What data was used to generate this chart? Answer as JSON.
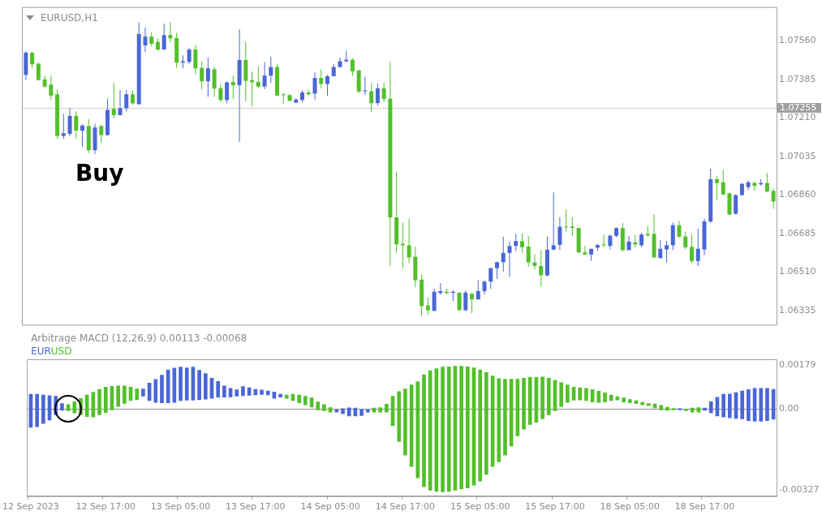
{
  "chart_data": [
    {
      "type": "candlestick",
      "title": "EURUSD,H1",
      "categories": [
        null,
        null,
        null,
        null,
        null,
        null,
        null,
        null,
        null,
        null,
        null,
        null,
        null,
        null,
        null,
        null,
        null,
        null,
        null,
        null,
        null,
        null,
        null,
        null,
        null,
        null,
        null,
        null,
        null,
        null,
        null,
        null,
        null,
        null,
        null,
        null,
        null,
        null,
        null,
        null,
        null,
        null,
        null,
        null,
        null,
        null,
        null,
        null,
        null,
        null,
        null,
        null,
        null,
        null,
        null,
        null,
        null,
        null,
        null,
        null,
        null,
        null,
        null,
        null,
        null,
        null,
        null,
        null,
        null,
        null,
        null,
        null,
        null,
        null,
        null,
        null,
        null,
        null,
        null,
        null,
        null,
        null,
        null,
        null,
        null,
        null,
        null,
        null,
        null,
        null,
        null,
        null,
        null,
        null,
        null,
        null,
        null,
        null,
        null,
        null,
        null,
        null,
        null,
        null,
        null,
        null,
        null,
        null,
        null,
        null,
        null,
        null,
        null,
        null,
        null,
        null,
        null,
        null,
        null,
        null
      ],
      "ohlc": [
        [
          1.07405,
          1.07512,
          1.07382,
          1.07506
        ],
        [
          1.07506,
          1.07508,
          1.07435,
          1.07453
        ],
        [
          1.07456,
          1.07461,
          1.07378,
          1.07382
        ],
        [
          1.07384,
          1.07402,
          1.07346,
          1.07352
        ],
        [
          1.07361,
          1.07402,
          1.07293,
          1.07311
        ],
        [
          1.07317,
          1.0734,
          1.07114,
          1.07128
        ],
        [
          1.07128,
          1.07228,
          1.07114,
          1.0714
        ],
        [
          1.07137,
          1.07254,
          1.07126,
          1.07219
        ],
        [
          1.07219,
          1.0724,
          1.07116,
          1.07152
        ],
        [
          1.07152,
          1.07181,
          1.07078,
          1.07175
        ],
        [
          1.07173,
          1.07205,
          1.0705,
          1.07063
        ],
        [
          1.07063,
          1.07184,
          1.07045,
          1.07166
        ],
        [
          1.07173,
          1.07178,
          1.07096,
          1.07132
        ],
        [
          1.07132,
          1.07297,
          1.07128,
          1.07246
        ],
        [
          1.07251,
          1.0737,
          1.07208,
          1.07222
        ],
        [
          1.07222,
          1.07337,
          1.07222,
          1.07254
        ],
        [
          1.07254,
          1.07337,
          1.07238,
          1.07317
        ],
        [
          1.07317,
          1.07335,
          1.0727,
          1.07276
        ],
        [
          1.07272,
          1.07644,
          1.0727,
          1.07591
        ],
        [
          1.07539,
          1.07621,
          1.07509,
          1.07579
        ],
        [
          1.07579,
          1.07598,
          1.07535,
          1.07547
        ],
        [
          1.07555,
          1.07571,
          1.07514,
          1.0752
        ],
        [
          1.0752,
          1.07638,
          1.0752,
          1.07586
        ],
        [
          1.07586,
          1.07644,
          1.07553,
          1.07571
        ],
        [
          1.07573,
          1.07597,
          1.07438,
          1.07461
        ],
        [
          1.07461,
          1.07494,
          1.07435,
          1.07467
        ],
        [
          1.07464,
          1.07529,
          1.07453,
          1.0752
        ],
        [
          1.0752,
          1.07541,
          1.07409,
          1.07435
        ],
        [
          1.07437,
          1.07467,
          1.0734,
          1.07376
        ],
        [
          1.07376,
          1.07484,
          1.07305,
          1.07435
        ],
        [
          1.07431,
          1.07441,
          1.07307,
          1.07343
        ],
        [
          1.07345,
          1.07364,
          1.07281,
          1.07291
        ],
        [
          1.07291,
          1.07376,
          1.07276,
          1.07371
        ],
        [
          1.07373,
          1.07402,
          1.07296,
          1.07358
        ],
        [
          1.07358,
          1.07612,
          1.07101,
          1.07473
        ],
        [
          1.07473,
          1.07555,
          1.07284,
          1.07378
        ],
        [
          1.07381,
          1.0742,
          1.07263,
          1.07372
        ],
        [
          1.07373,
          1.07444,
          1.07346,
          1.07352
        ],
        [
          1.07352,
          1.07464,
          1.0734,
          1.07402
        ],
        [
          1.07402,
          1.07488,
          1.07369,
          1.07441
        ],
        [
          1.07441,
          1.07455,
          1.07311,
          1.07311
        ],
        [
          1.07317,
          1.07322,
          1.07272,
          1.07313
        ],
        [
          1.07313,
          1.07317,
          1.07287,
          1.07287
        ],
        [
          1.07279,
          1.07299,
          1.07278,
          1.07293
        ],
        [
          1.07291,
          1.07335,
          1.07281,
          1.07325
        ],
        [
          1.07325,
          1.07338,
          1.07311,
          1.07317
        ],
        [
          1.0732,
          1.07417,
          1.07293,
          1.07391
        ],
        [
          1.07391,
          1.07429,
          1.07343,
          1.07364
        ],
        [
          1.07364,
          1.07405,
          1.07309,
          1.07399
        ],
        [
          1.07399,
          1.07455,
          1.07399,
          1.07441
        ],
        [
          1.07441,
          1.07484,
          1.07437,
          1.07467
        ],
        [
          1.07467,
          1.07515,
          1.07461,
          1.07474
        ],
        [
          1.07474,
          1.07482,
          1.07402,
          1.07421
        ],
        [
          1.07425,
          1.07429,
          1.07323,
          1.07329
        ],
        [
          1.07331,
          1.07397,
          1.07314,
          1.07335
        ],
        [
          1.07331,
          1.07368,
          1.07237,
          1.07277
        ],
        [
          1.07277,
          1.07366,
          1.07266,
          1.07344
        ],
        [
          1.07344,
          1.0737,
          1.07281,
          1.07296
        ],
        [
          1.07298,
          1.07464,
          1.06537,
          1.06758
        ],
        [
          1.06758,
          1.06966,
          1.06596,
          1.06635
        ],
        [
          1.06638,
          1.06732,
          1.06527,
          1.06631
        ],
        [
          1.06631,
          1.06752,
          1.0655,
          1.06576
        ],
        [
          1.06579,
          1.06625,
          1.0644,
          1.06472
        ],
        [
          1.06475,
          1.06498,
          1.0631,
          1.06355
        ],
        [
          1.06358,
          1.06394,
          1.06316,
          1.06336
        ],
        [
          1.06333,
          1.06433,
          1.06332,
          1.0642
        ],
        [
          1.06414,
          1.06459,
          1.06407,
          1.06423
        ],
        [
          1.0642,
          1.06436,
          1.06407,
          1.06414
        ],
        [
          1.06415,
          1.06427,
          1.06378,
          1.0642
        ],
        [
          1.06416,
          1.06416,
          1.06336,
          1.06336
        ],
        [
          1.06336,
          1.06427,
          1.06332,
          1.06416
        ],
        [
          1.06411,
          1.06414,
          1.06323,
          1.06385
        ],
        [
          1.06385,
          1.06472,
          1.06385,
          1.06423
        ],
        [
          1.06423,
          1.06472,
          1.06407,
          1.06466
        ],
        [
          1.06466,
          1.06527,
          1.06433,
          1.06527
        ],
        [
          1.06527,
          1.06557,
          1.06479,
          1.06554
        ],
        [
          1.06554,
          1.0667,
          1.06511,
          1.06596
        ],
        [
          1.06596,
          1.06648,
          1.06488,
          1.06628
        ],
        [
          1.06628,
          1.06683,
          1.06605,
          1.0665
        ],
        [
          1.0665,
          1.06684,
          1.06596,
          1.06622
        ],
        [
          1.06625,
          1.06674,
          1.06533,
          1.06553
        ],
        [
          1.06553,
          1.06589,
          1.06521,
          1.06537
        ],
        [
          1.06537,
          1.06609,
          1.06442,
          1.06495
        ],
        [
          1.06494,
          1.0667,
          1.06489,
          1.06611
        ],
        [
          1.06611,
          1.06871,
          1.06609,
          1.06631
        ],
        [
          1.06633,
          1.06758,
          1.06609,
          1.06715
        ],
        [
          1.06716,
          1.06794,
          1.06693,
          1.06715
        ],
        [
          1.06716,
          1.06758,
          1.06674,
          1.0671
        ],
        [
          1.0671,
          1.0671,
          1.06596,
          1.06599
        ],
        [
          1.06599,
          1.06628,
          1.06586,
          1.06589
        ],
        [
          1.06589,
          1.06615,
          1.0656,
          1.06615
        ],
        [
          1.0662,
          1.06638,
          1.06605,
          1.06632
        ],
        [
          1.06635,
          1.0668,
          1.06622,
          1.06631
        ],
        [
          1.06628,
          1.0668,
          1.06612,
          1.06674
        ],
        [
          1.06674,
          1.06713,
          1.06667,
          1.06709
        ],
        [
          1.06709,
          1.06732,
          1.06602,
          1.06609
        ],
        [
          1.06609,
          1.06674,
          1.06609,
          1.06648
        ],
        [
          1.06644,
          1.06677,
          1.06622,
          1.06635
        ],
        [
          1.06631,
          1.06687,
          1.06622,
          1.0668
        ],
        [
          1.06683,
          1.06719,
          1.0667,
          1.06676
        ],
        [
          1.06683,
          1.06771,
          1.06573,
          1.06576
        ],
        [
          1.06573,
          1.06654,
          1.0657,
          1.06615
        ],
        [
          1.06612,
          1.06651,
          1.06553,
          1.06631
        ],
        [
          1.06631,
          1.06735,
          1.06609,
          1.06722
        ],
        [
          1.06722,
          1.06742,
          1.06664,
          1.0667
        ],
        [
          1.06671,
          1.06693,
          1.06612,
          1.06622
        ],
        [
          1.06624,
          1.0668,
          1.0655,
          1.06559
        ],
        [
          1.06559,
          1.06706,
          1.06537,
          1.06615
        ],
        [
          1.06612,
          1.06752,
          1.06586,
          1.06739
        ],
        [
          1.06739,
          1.06979,
          1.06732,
          1.06931
        ],
        [
          1.06931,
          1.06945,
          1.06836,
          1.06914
        ],
        [
          1.06917,
          1.06973,
          1.06859,
          1.06862
        ],
        [
          1.06867,
          1.06871,
          1.06768,
          1.06771
        ],
        [
          1.06774,
          1.06862,
          1.06771,
          1.06859
        ],
        [
          1.06859,
          1.06914,
          1.06856,
          1.0691
        ],
        [
          1.06895,
          1.06927,
          1.06882,
          1.06917
        ],
        [
          1.06914,
          1.06921,
          1.06879,
          1.06901
        ],
        [
          1.06908,
          1.06931,
          1.06901,
          1.06914
        ],
        [
          1.06914,
          1.0696,
          1.06871,
          1.06875
        ],
        [
          1.06878,
          1.06888,
          1.06797,
          1.0683
        ]
      ],
      "colors": [
        "#4a67d6",
        "#52c02a",
        "#52c02a",
        "#52c02a",
        "#52c02a",
        "#52c02a",
        "#4a67d6",
        "#4a67d6",
        "#52c02a",
        "#4a67d6",
        "#52c02a",
        "#4a67d6",
        "#52c02a",
        "#4a67d6",
        "#52c02a",
        "#4a67d6",
        "#4a67d6",
        "#52c02a",
        "#4a67d6",
        "#4a67d6",
        "#52c02a",
        "#52c02a",
        "#4a67d6",
        "#52c02a",
        "#52c02a",
        "#4a67d6",
        "#4a67d6",
        "#52c02a",
        "#52c02a",
        "#4a67d6",
        "#52c02a",
        "#52c02a",
        "#4a67d6",
        "#52c02a",
        "#4a67d6",
        "#52c02a",
        "#52c02a",
        "#52c02a",
        "#4a67d6",
        "#4a67d6",
        "#52c02a",
        "#52c02a",
        "#52c02a",
        "#4a67d6",
        "#4a67d6",
        "#52c02a",
        "#4a67d6",
        "#52c02a",
        "#4a67d6",
        "#4a67d6",
        "#4a67d6",
        "#4a67d6",
        "#52c02a",
        "#52c02a",
        "#4a67d6",
        "#52c02a",
        "#4a67d6",
        "#52c02a",
        "#52c02a",
        "#52c02a",
        "#52c02a",
        "#52c02a",
        "#52c02a",
        "#52c02a",
        "#52c02a",
        "#4a67d6",
        "#4a67d6",
        "#52c02a",
        "#4a67d6",
        "#52c02a",
        "#4a67d6",
        "#52c02a",
        "#4a67d6",
        "#4a67d6",
        "#4a67d6",
        "#4a67d6",
        "#4a67d6",
        "#4a67d6",
        "#4a67d6",
        "#52c02a",
        "#52c02a",
        "#52c02a",
        "#52c02a",
        "#4a67d6",
        "#4a67d6",
        "#4a67d6",
        "#52c02a",
        "#52c02a",
        "#52c02a",
        "#52c02a",
        "#4a67d6",
        "#4a67d6",
        "#52c02a",
        "#4a67d6",
        "#4a67d6",
        "#52c02a",
        "#4a67d6",
        "#52c02a",
        "#4a67d6",
        "#52c02a",
        "#52c02a",
        "#4a67d6",
        "#4a67d6",
        "#4a67d6",
        "#52c02a",
        "#52c02a",
        "#52c02a",
        "#4a67d6",
        "#4a67d6",
        "#4a67d6",
        "#52c02a",
        "#52c02a",
        "#52c02a",
        "#4a67d6",
        "#4a67d6",
        "#4a67d6",
        "#52c02a",
        "#4a67d6",
        "#52c02a",
        "#52c02a"
      ],
      "ylim": [
        1.0627,
        1.0771
      ],
      "yticks": [
        {
          "value": 1.06335,
          "label": "1.06335"
        },
        {
          "value": 1.0651,
          "label": "1.06510"
        },
        {
          "value": 1.06685,
          "label": "1.06685"
        },
        {
          "value": 1.0686,
          "label": "1.06860"
        },
        {
          "value": 1.07035,
          "label": "1.07035"
        },
        {
          "value": 1.0721,
          "label": "1.07210"
        },
        {
          "value": 1.07385,
          "label": "1.07385"
        },
        {
          "value": 1.0756,
          "label": "1.07560"
        }
      ],
      "ref_lines": [
        {
          "axis": "y",
          "value": 1.07255,
          "label": "1.07255"
        }
      ],
      "annotations": [
        "Buy"
      ],
      "tick_labels": "y"
    },
    {
      "type": "bar",
      "title": "Arbitrage MACD (12,26,9) 0.00113 -0.00068",
      "categories": [
        "12 Sep 2023",
        null,
        null,
        null,
        null,
        null,
        null,
        null,
        null,
        null,
        null,
        null,
        "12 Sep 17:00",
        null,
        null,
        null,
        null,
        null,
        null,
        null,
        null,
        null,
        null,
        null,
        "13 Sep 05:00",
        null,
        null,
        null,
        null,
        null,
        null,
        null,
        null,
        null,
        null,
        null,
        "13 Sep 17:00",
        null,
        null,
        null,
        null,
        null,
        null,
        null,
        null,
        null,
        null,
        null,
        "14 Sep 05:00",
        null,
        null,
        null,
        null,
        null,
        null,
        null,
        null,
        null,
        null,
        null,
        "14 Sep 17:00",
        null,
        null,
        null,
        null,
        null,
        null,
        null,
        null,
        null,
        null,
        null,
        "15 Sep 05:00",
        null,
        null,
        null,
        null,
        null,
        null,
        null,
        null,
        null,
        null,
        null,
        "15 Sep 17:00",
        null,
        null,
        null,
        null,
        null,
        null,
        null,
        null,
        null,
        null,
        null,
        "18 Sep 05:00",
        null,
        null,
        null,
        null,
        null,
        null,
        null,
        null,
        null,
        null,
        null,
        "18 Sep 17:00",
        null,
        null,
        null,
        null,
        null,
        null,
        null,
        null,
        null,
        null,
        null
      ],
      "series": [
        {
          "name": "EUR",
          "color": "#4a67d6",
          "base": [
            -0.00074,
            -0.00071,
            -0.00058,
            -0.00044,
            -0.00023,
            -5e-05,
            null,
            null,
            null,
            null,
            null,
            null,
            null,
            null,
            null,
            null,
            null,
            null,
            0.00052,
            0.00034,
            0.00027,
            0.00025,
            0.00025,
            0.00027,
            0.00034,
            0.00036,
            0.00036,
            0.00038,
            0.0004,
            0.00043,
            0.00048,
            0.00048,
            0.00049,
            0.00052,
            0.00054,
            0.00056,
            0.00057,
            0.00059,
            0.00057,
            0.00043,
            0.00048,
            null,
            null,
            null,
            null,
            null,
            null,
            null,
            null,
            -0.00012,
            -0.00019,
            -0.00028,
            -0.00028,
            -0.00026,
            -0.00012,
            null,
            null,
            null,
            null,
            null,
            null,
            null,
            null,
            null,
            null,
            null,
            null,
            null,
            null,
            null,
            null,
            null,
            null,
            null,
            null,
            null,
            null,
            null,
            null,
            null,
            null,
            null,
            null,
            null,
            null,
            null,
            null,
            null,
            null,
            null,
            null,
            null,
            null,
            null,
            null,
            null,
            null,
            null,
            null,
            null,
            null,
            null,
            null,
            null,
            -3e-05,
            null,
            null,
            null,
            -5e-05,
            -0.00016,
            -0.00028,
            -0.00032,
            -0.00035,
            -0.00038,
            -0.00039,
            -0.00047,
            -0.00049,
            -0.00049,
            -0.00047,
            -0.00041
          ],
          "values": [
            0.00134,
            0.00131,
            0.00115,
            0.00098,
            0.00075,
            0.00027,
            null,
            null,
            null,
            null,
            null,
            null,
            null,
            null,
            null,
            null,
            null,
            null,
            0.00029,
            0.00071,
            0.00093,
            0.00112,
            0.00133,
            0.00139,
            0.00136,
            0.00131,
            0.00134,
            0.00119,
            0.00104,
            0.00082,
            0.00064,
            0.00046,
            0.00035,
            0.00026,
            0.00037,
            0.0003,
            0.00023,
            0.00018,
            0.00016,
            0.00026,
            0.00012,
            null,
            null,
            null,
            null,
            null,
            null,
            null,
            null,
            9e-05,
            0.00021,
            0.00033,
            0.00032,
            0.00025,
            9e-05,
            null,
            null,
            null,
            null,
            null,
            null,
            null,
            null,
            null,
            null,
            null,
            null,
            null,
            null,
            null,
            null,
            null,
            null,
            null,
            null,
            null,
            null,
            null,
            null,
            null,
            null,
            null,
            null,
            null,
            null,
            null,
            null,
            null,
            null,
            null,
            null,
            null,
            null,
            null,
            null,
            null,
            null,
            null,
            null,
            null,
            null,
            null,
            null,
            null,
            5e-05,
            null,
            null,
            null,
            9e-05,
            0.00046,
            0.00076,
            0.00092,
            0.00096,
            0.00105,
            0.00112,
            0.00126,
            0.00133,
            0.00133,
            0.00131,
            0.00121
          ]
        },
        {
          "name": "USD",
          "color": "#52c02a",
          "base": [
            null,
            null,
            null,
            null,
            null,
            null,
            -7e-05,
            -0.00016,
            -0.00023,
            -0.0003,
            -0.00032,
            -0.00023,
            -0.00014,
            -3e-05,
            0.00011,
            0.00023,
            0.00034,
            0.00038,
            null,
            null,
            null,
            null,
            null,
            null,
            null,
            null,
            null,
            null,
            null,
            null,
            null,
            null,
            null,
            null,
            null,
            null,
            null,
            null,
            null,
            null,
            null,
            0.00043,
            0.00034,
            0.00025,
            0.00017,
            8e-05,
            -3e-05,
            -7e-05,
            -0.00012,
            null,
            null,
            null,
            null,
            null,
            null,
            -0.00012,
            -0.00012,
            -0.00012,
            -0.00067,
            -0.00131,
            -0.00186,
            -0.00232,
            -0.00278,
            -0.00314,
            -0.00328,
            -0.00333,
            -0.00334,
            -0.00333,
            -0.00328,
            -0.00323,
            -0.00319,
            -0.00307,
            -0.00291,
            -0.00264,
            -0.00232,
            -0.00213,
            -0.00186,
            -0.00149,
            -0.00108,
            -0.00081,
            -0.00062,
            -0.00053,
            -0.00039,
            -0.00023,
            -7e-05,
            0.00011,
            0.00027,
            0.00036,
            0.00037,
            0.00034,
            0.00029,
            0.00027,
            0.00029,
            0.00034,
            0.00037,
            0.00029,
            0.00025,
            0.00022,
            0.00017,
            0.00014,
            5e-05,
            -3e-05,
            -5e-05,
            -3e-05,
            null,
            -7e-05,
            -0.00012,
            -0.00012,
            null,
            null,
            null,
            null,
            null,
            null,
            null,
            null,
            null,
            null,
            null,
            null
          ],
          "values": [
            null,
            null,
            null,
            null,
            null,
            null,
            0.00025,
            0.00046,
            0.00066,
            0.00087,
            0.001,
            0.00103,
            0.00103,
            0.00095,
            0.00083,
            0.00071,
            0.00055,
            0.00043,
            null,
            null,
            null,
            null,
            null,
            null,
            null,
            null,
            null,
            null,
            null,
            null,
            null,
            null,
            null,
            null,
            null,
            null,
            null,
            null,
            null,
            null,
            null,
            0.00014,
            0.00026,
            0.00032,
            0.00035,
            0.00037,
            0.00032,
            0.00025,
            0.00018,
            null,
            null,
            null,
            null,
            null,
            null,
            0.00016,
            0.00018,
            0.00032,
            0.00119,
            0.00202,
            0.00267,
            0.0033,
            0.00389,
            0.00453,
            0.00483,
            0.00496,
            0.00504,
            0.00504,
            0.00501,
            0.00496,
            0.0049,
            0.00474,
            0.00449,
            0.00412,
            0.00366,
            0.00336,
            0.00307,
            0.0027,
            0.00229,
            0.00206,
            0.00191,
            0.00181,
            0.00169,
            0.00148,
            0.00124,
            0.00096,
            0.00071,
            0.00053,
            0.00049,
            0.0005,
            0.0005,
            0.00045,
            0.00037,
            0.00023,
            0.00013,
            0.00016,
            0.00014,
            0.00012,
            0.0001,
            8e-05,
            0.00016,
            0.00018,
            0.00013,
            6e-05,
            null,
            7e-05,
            0.00016,
            0.00018,
            null,
            null,
            null,
            null,
            null,
            null,
            null,
            null,
            null,
            null,
            null,
            null
          ]
        }
      ],
      "ylim": [
        -0.00352,
        0.00198
      ],
      "yticks": [
        {
          "value": -0.00327,
          "label": "-0.00327"
        },
        {
          "value": 0,
          "label": "0.00"
        },
        {
          "value": 0.00179,
          "label": "0.00179"
        }
      ],
      "ref_lines": [
        {
          "axis": "y",
          "value": 0
        }
      ],
      "legend": "top left"
    }
  ]
}
